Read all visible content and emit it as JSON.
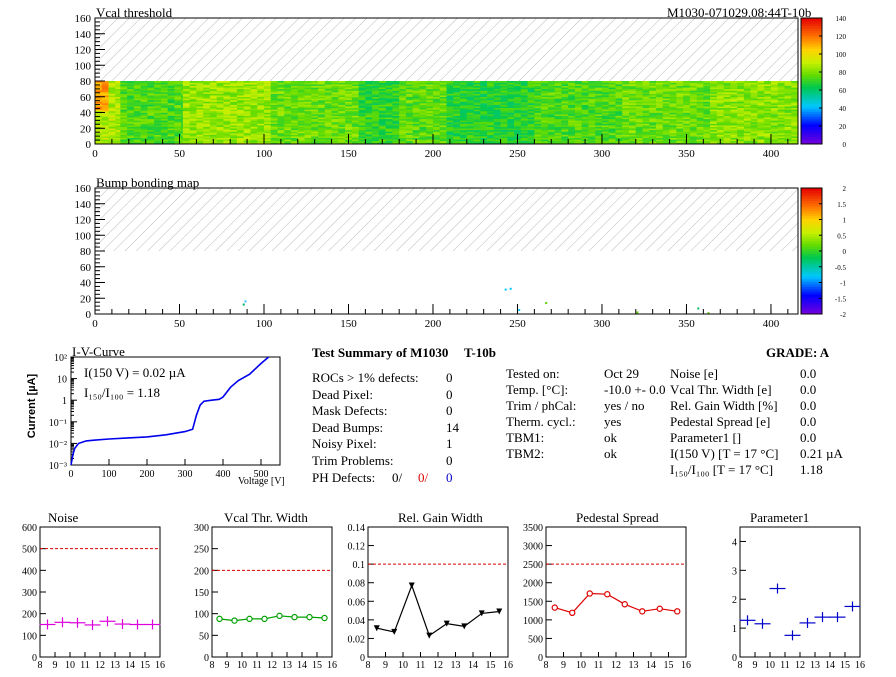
{
  "chart_data": [
    {
      "type": "heatmap",
      "title": "Vcal threshold",
      "id_label": "M1030-071029.08:44T-10b",
      "xlim": [
        0,
        416
      ],
      "ylim": [
        0,
        160
      ],
      "xticks": [
        0,
        50,
        100,
        150,
        200,
        250,
        300,
        350,
        400
      ],
      "yticks": [
        0,
        20,
        40,
        60,
        80,
        100,
        120,
        140,
        160
      ],
      "data_rows": [
        0,
        80
      ],
      "colorbar": {
        "range": [
          0,
          140
        ],
        "ticks": [
          0,
          20,
          40,
          60,
          80,
          100,
          120,
          140
        ]
      },
      "roc_columns": [
        {
          "from": 0,
          "to": 15,
          "value": 88
        },
        {
          "from": 15,
          "to": 52,
          "value": 74
        },
        {
          "from": 52,
          "to": 104,
          "value": 84
        },
        {
          "from": 104,
          "to": 156,
          "value": 78
        },
        {
          "from": 156,
          "to": 180,
          "value": 70
        },
        {
          "from": 180,
          "to": 208,
          "value": 76
        },
        {
          "from": 208,
          "to": 260,
          "value": 68
        },
        {
          "from": 260,
          "to": 312,
          "value": 74
        },
        {
          "from": 312,
          "to": 364,
          "value": 78
        },
        {
          "from": 364,
          "to": 416,
          "value": 82
        }
      ]
    },
    {
      "type": "heatmap",
      "title": "Bump bonding map",
      "xlim": [
        0,
        416
      ],
      "ylim": [
        0,
        160
      ],
      "xticks": [
        0,
        50,
        100,
        150,
        200,
        250,
        300,
        350,
        400
      ],
      "yticks": [
        0,
        20,
        40,
        60,
        80,
        100,
        120,
        140,
        160
      ],
      "data_rows": [
        0,
        80
      ],
      "colorbar": {
        "range": [
          -2,
          2
        ],
        "ticks": [
          -2,
          -1.5,
          -1,
          -0.5,
          0,
          0.5,
          1,
          1.5,
          2
        ]
      },
      "points": [
        {
          "x": 88,
          "y": 12,
          "color": "#00b060"
        },
        {
          "x": 89,
          "y": 16,
          "color": "#30c0ff"
        },
        {
          "x": 243,
          "y": 31,
          "color": "#00c8ff"
        },
        {
          "x": 246,
          "y": 32,
          "color": "#00c8ff"
        },
        {
          "x": 267,
          "y": 14,
          "color": "#60d000"
        },
        {
          "x": 251,
          "y": 5,
          "color": "#00c8ff"
        },
        {
          "x": 321,
          "y": 2,
          "color": "#60d000"
        },
        {
          "x": 357,
          "y": 7,
          "color": "#00c060"
        },
        {
          "x": 363,
          "y": 1,
          "color": "#60d000"
        }
      ]
    },
    {
      "type": "line",
      "title": "I-V-Curve",
      "xlabel": "Voltage [V]",
      "ylabel": "Current [µA]",
      "xlim": [
        0,
        550
      ],
      "ylim_log10": [
        -3,
        2
      ],
      "xticks": [
        0,
        100,
        200,
        300,
        400,
        500
      ],
      "ytick_labels": [
        "10⁻³",
        "10⁻²",
        "10⁻¹",
        "1",
        "10",
        "10²"
      ],
      "annotations": [
        "I(150 V) = 0.02 µA",
        "I₁₅₀/I₁₀₀ =  1.18"
      ],
      "x": [
        0,
        5,
        10,
        20,
        40,
        60,
        100,
        150,
        200,
        250,
        300,
        320,
        330,
        340,
        350,
        370,
        390,
        400,
        420,
        440,
        470,
        500,
        520
      ],
      "values": [
        0.001,
        0.003,
        0.006,
        0.01,
        0.013,
        0.014,
        0.016,
        0.018,
        0.02,
        0.025,
        0.035,
        0.045,
        0.2,
        0.6,
        0.9,
        1.0,
        1.1,
        1.4,
        4.0,
        8.0,
        16.0,
        50.0,
        100.0
      ]
    },
    {
      "type": "line",
      "title": "Noise",
      "xlim": [
        8,
        16
      ],
      "ylim": [
        0,
        600
      ],
      "xticks": [
        8,
        9,
        10,
        11,
        12,
        13,
        14,
        15,
        16
      ],
      "yticks": [
        0,
        100,
        200,
        300,
        400,
        500,
        600
      ],
      "threshold": 500,
      "color": "#dd00dd",
      "marker": "cross",
      "connect": false,
      "x": [
        8.5,
        9.5,
        10.5,
        11.5,
        12.5,
        13.5,
        14.5,
        15.5
      ],
      "values": [
        150,
        160,
        158,
        148,
        165,
        152,
        150,
        150
      ]
    },
    {
      "type": "line",
      "title": "Vcal Thr. Width",
      "xlim": [
        8,
        16
      ],
      "ylim": [
        0,
        300
      ],
      "xticks": [
        8,
        9,
        10,
        11,
        12,
        13,
        14,
        15,
        16
      ],
      "yticks": [
        0,
        50,
        100,
        150,
        200,
        250,
        300
      ],
      "threshold": 200,
      "color": "#00a000",
      "marker": "circle",
      "connect": true,
      "x": [
        8.5,
        9.5,
        10.5,
        11.5,
        12.5,
        13.5,
        14.5,
        15.5
      ],
      "values": [
        88,
        84,
        88,
        88,
        95,
        92,
        92,
        90
      ]
    },
    {
      "type": "line",
      "title": "Rel. Gain Width",
      "xlim": [
        8,
        16
      ],
      "ylim": [
        0,
        0.14
      ],
      "xticks": [
        8,
        9,
        10,
        11,
        12,
        13,
        14,
        15,
        16
      ],
      "yticks": [
        0,
        0.02,
        0.04,
        0.06,
        0.08,
        0.1,
        0.12,
        0.14
      ],
      "threshold": 0.1,
      "color": "#000000",
      "marker": "triangle",
      "connect": true,
      "x": [
        8.5,
        9.5,
        10.5,
        11.5,
        12.5,
        13.5,
        14.5,
        15.5
      ],
      "values": [
        0.031,
        0.027,
        0.077,
        0.023,
        0.036,
        0.033,
        0.047,
        0.049
      ]
    },
    {
      "type": "line",
      "title": "Pedestal Spread",
      "xlim": [
        8,
        16
      ],
      "ylim": [
        0,
        3500
      ],
      "xticks": [
        8,
        9,
        10,
        11,
        12,
        13,
        14,
        15,
        16
      ],
      "yticks": [
        0,
        500,
        1000,
        1500,
        2000,
        2500,
        3000,
        3500
      ],
      "threshold": 2500,
      "color": "#dd0000",
      "marker": "circle",
      "connect": true,
      "x": [
        8.5,
        9.5,
        10.5,
        11.5,
        12.5,
        13.5,
        14.5,
        15.5
      ],
      "values": [
        1330,
        1190,
        1710,
        1690,
        1420,
        1230,
        1300,
        1230
      ]
    },
    {
      "type": "line",
      "title": "Parameter1",
      "xlim": [
        8,
        16
      ],
      "ylim": [
        0,
        4.5
      ],
      "xticks": [
        8,
        9,
        10,
        11,
        12,
        13,
        14,
        15,
        16
      ],
      "yticks": [
        0,
        1,
        2,
        3,
        4
      ],
      "color": "#0000cc",
      "marker": "cross",
      "connect": false,
      "x": [
        8.5,
        9.5,
        10.5,
        11.5,
        12.5,
        13.5,
        14.5,
        15.5
      ],
      "values": [
        1.27,
        1.15,
        2.37,
        0.75,
        1.18,
        1.38,
        1.38,
        1.75
      ]
    }
  ],
  "summary": {
    "title": "Test Summary of M1030",
    "tag": "T-10b",
    "grade": "GRADE:  A",
    "rows": [
      {
        "label": "ROCs > 1% defects:",
        "value": "0"
      },
      {
        "label": "Dead Pixel:",
        "value": "0"
      },
      {
        "label": "Mask Defects:",
        "value": "0"
      },
      {
        "label": "Dead Bumps:",
        "value": "14"
      },
      {
        "label": "Noisy Pixel:",
        "value": "1"
      },
      {
        "label": "Trim Problems:",
        "value": "0"
      }
    ],
    "ph_defects": {
      "label": "PH Defects:",
      "v1": "0/",
      "v2": "0/",
      "v3": "0",
      "c2": "#dd0000",
      "c3": "#0000cc"
    },
    "test": [
      {
        "label": "Tested on:",
        "value": "Oct 29"
      },
      {
        "label": "Temp. [°C]:",
        "value": "-10.0 +- 0.0"
      },
      {
        "label": "Trim / phCal:",
        "value": "yes / no"
      },
      {
        "label": "Therm. cycl.:",
        "value": "yes"
      },
      {
        "label": "TBM1:",
        "value": "ok"
      },
      {
        "label": "TBM2:",
        "value": "ok"
      }
    ],
    "params": [
      {
        "label": "Noise [e]",
        "value": "0.0"
      },
      {
        "label": "Vcal Thr. Width [e]",
        "value": "0.0"
      },
      {
        "label": "Rel. Gain Width [%]",
        "value": "0.0"
      },
      {
        "label": "Pedestal Spread [e]",
        "value": "0.0"
      },
      {
        "label": "Parameter1 []",
        "value": "0.0"
      },
      {
        "label": "I(150 V) [T = 17 °C]",
        "value": "0.21 µA"
      },
      {
        "label": "I₁₅₀/I₁₀₀  [T = 17 °C]",
        "value": "1.18"
      }
    ]
  }
}
